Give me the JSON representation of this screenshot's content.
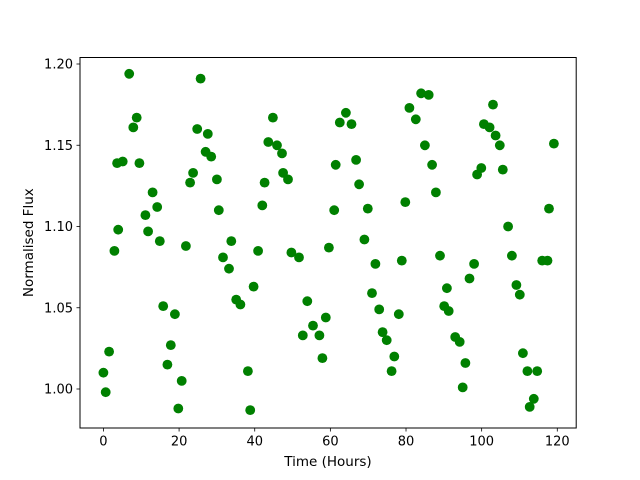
{
  "chart_data": {
    "type": "scatter",
    "title": "",
    "xlabel": "Time (Hours)",
    "ylabel": "Normalised Flux",
    "x_ticks": [
      0,
      20,
      40,
      60,
      80,
      100,
      120
    ],
    "y_ticks": [
      "1.00",
      "1.05",
      "1.10",
      "1.15",
      "1.20"
    ],
    "y_tick_values": [
      1.0,
      1.05,
      1.1,
      1.15,
      1.2
    ],
    "xlim": [
      -6.2,
      125.0
    ],
    "ylim": [
      0.976,
      1.204
    ],
    "grid": false,
    "legend": null,
    "marker": "circle",
    "marker_color": "#008000",
    "marker_radius_px": 4.9,
    "points": [
      [
        6.8,
        1.194
      ],
      [
        25.7,
        1.191
      ],
      [
        8.8,
        1.167
      ],
      [
        7.9,
        1.161
      ],
      [
        24.8,
        1.16
      ],
      [
        27.6,
        1.157
      ],
      [
        27.0,
        1.146
      ],
      [
        28.5,
        1.143
      ],
      [
        5.1,
        1.14
      ],
      [
        3.6,
        1.139
      ],
      [
        9.5,
        1.139
      ],
      [
        23.7,
        1.133
      ],
      [
        22.9,
        1.127
      ],
      [
        13.0,
        1.121
      ],
      [
        14.2,
        1.112
      ],
      [
        11.1,
        1.107
      ],
      [
        3.9,
        1.098
      ],
      [
        11.8,
        1.097
      ],
      [
        14.9,
        1.091
      ],
      [
        21.8,
        1.088
      ],
      [
        2.9,
        1.085
      ],
      [
        15.8,
        1.051
      ],
      [
        18.9,
        1.046
      ],
      [
        17.8,
        1.027
      ],
      [
        1.5,
        1.023
      ],
      [
        16.9,
        1.015
      ],
      [
        0.0,
        1.01
      ],
      [
        20.7,
        1.005
      ],
      [
        0.6,
        0.998
      ],
      [
        19.8,
        0.988
      ],
      [
        44.8,
        1.167
      ],
      [
        43.6,
        1.152
      ],
      [
        45.9,
        1.15
      ],
      [
        47.2,
        1.145
      ],
      [
        47.5,
        1.133
      ],
      [
        48.8,
        1.129
      ],
      [
        42.6,
        1.127
      ],
      [
        30.0,
        1.129
      ],
      [
        42.0,
        1.113
      ],
      [
        30.5,
        1.11
      ],
      [
        33.8,
        1.091
      ],
      [
        31.6,
        1.081
      ],
      [
        40.9,
        1.085
      ],
      [
        33.2,
        1.074
      ],
      [
        49.7,
        1.084
      ],
      [
        51.7,
        1.081
      ],
      [
        59.6,
        1.087
      ],
      [
        39.7,
        1.063
      ],
      [
        35.1,
        1.055
      ],
      [
        36.2,
        1.052
      ],
      [
        53.9,
        1.054
      ],
      [
        58.8,
        1.044
      ],
      [
        55.4,
        1.039
      ],
      [
        57.1,
        1.033
      ],
      [
        52.7,
        1.033
      ],
      [
        57.9,
        1.019
      ],
      [
        38.2,
        1.011
      ],
      [
        38.8,
        0.987
      ],
      [
        84.0,
        1.182
      ],
      [
        86.0,
        1.181
      ],
      [
        80.9,
        1.173
      ],
      [
        82.6,
        1.166
      ],
      [
        64.1,
        1.17
      ],
      [
        62.5,
        1.164
      ],
      [
        65.6,
        1.163
      ],
      [
        85.0,
        1.15
      ],
      [
        86.9,
        1.138
      ],
      [
        61.4,
        1.138
      ],
      [
        66.8,
        1.141
      ],
      [
        67.6,
        1.126
      ],
      [
        87.9,
        1.121
      ],
      [
        79.8,
        1.115
      ],
      [
        69.9,
        1.111
      ],
      [
        61.0,
        1.11
      ],
      [
        69.0,
        1.092
      ],
      [
        71.9,
        1.077
      ],
      [
        78.9,
        1.079
      ],
      [
        89.0,
        1.082
      ],
      [
        71.0,
        1.059
      ],
      [
        72.9,
        1.049
      ],
      [
        78.1,
        1.046
      ],
      [
        90.1,
        1.051
      ],
      [
        91.3,
        1.048
      ],
      [
        90.8,
        1.062
      ],
      [
        73.8,
        1.035
      ],
      [
        74.9,
        1.03
      ],
      [
        76.9,
        1.02
      ],
      [
        76.2,
        1.011
      ],
      [
        103.0,
        1.175
      ],
      [
        100.6,
        1.163
      ],
      [
        102.1,
        1.161
      ],
      [
        103.7,
        1.156
      ],
      [
        104.8,
        1.15
      ],
      [
        119.1,
        1.151
      ],
      [
        99.9,
        1.136
      ],
      [
        98.8,
        1.132
      ],
      [
        105.6,
        1.135
      ],
      [
        117.8,
        1.111
      ],
      [
        107.0,
        1.1
      ],
      [
        108.0,
        1.082
      ],
      [
        116.0,
        1.079
      ],
      [
        117.4,
        1.079
      ],
      [
        98.0,
        1.077
      ],
      [
        96.8,
        1.068
      ],
      [
        109.2,
        1.064
      ],
      [
        110.1,
        1.058
      ],
      [
        93.0,
        1.032
      ],
      [
        94.2,
        1.029
      ],
      [
        110.9,
        1.022
      ],
      [
        95.7,
        1.016
      ],
      [
        112.1,
        1.011
      ],
      [
        114.7,
        1.011
      ],
      [
        95.0,
        1.001
      ],
      [
        113.8,
        0.994
      ],
      [
        112.7,
        0.989
      ]
    ]
  }
}
